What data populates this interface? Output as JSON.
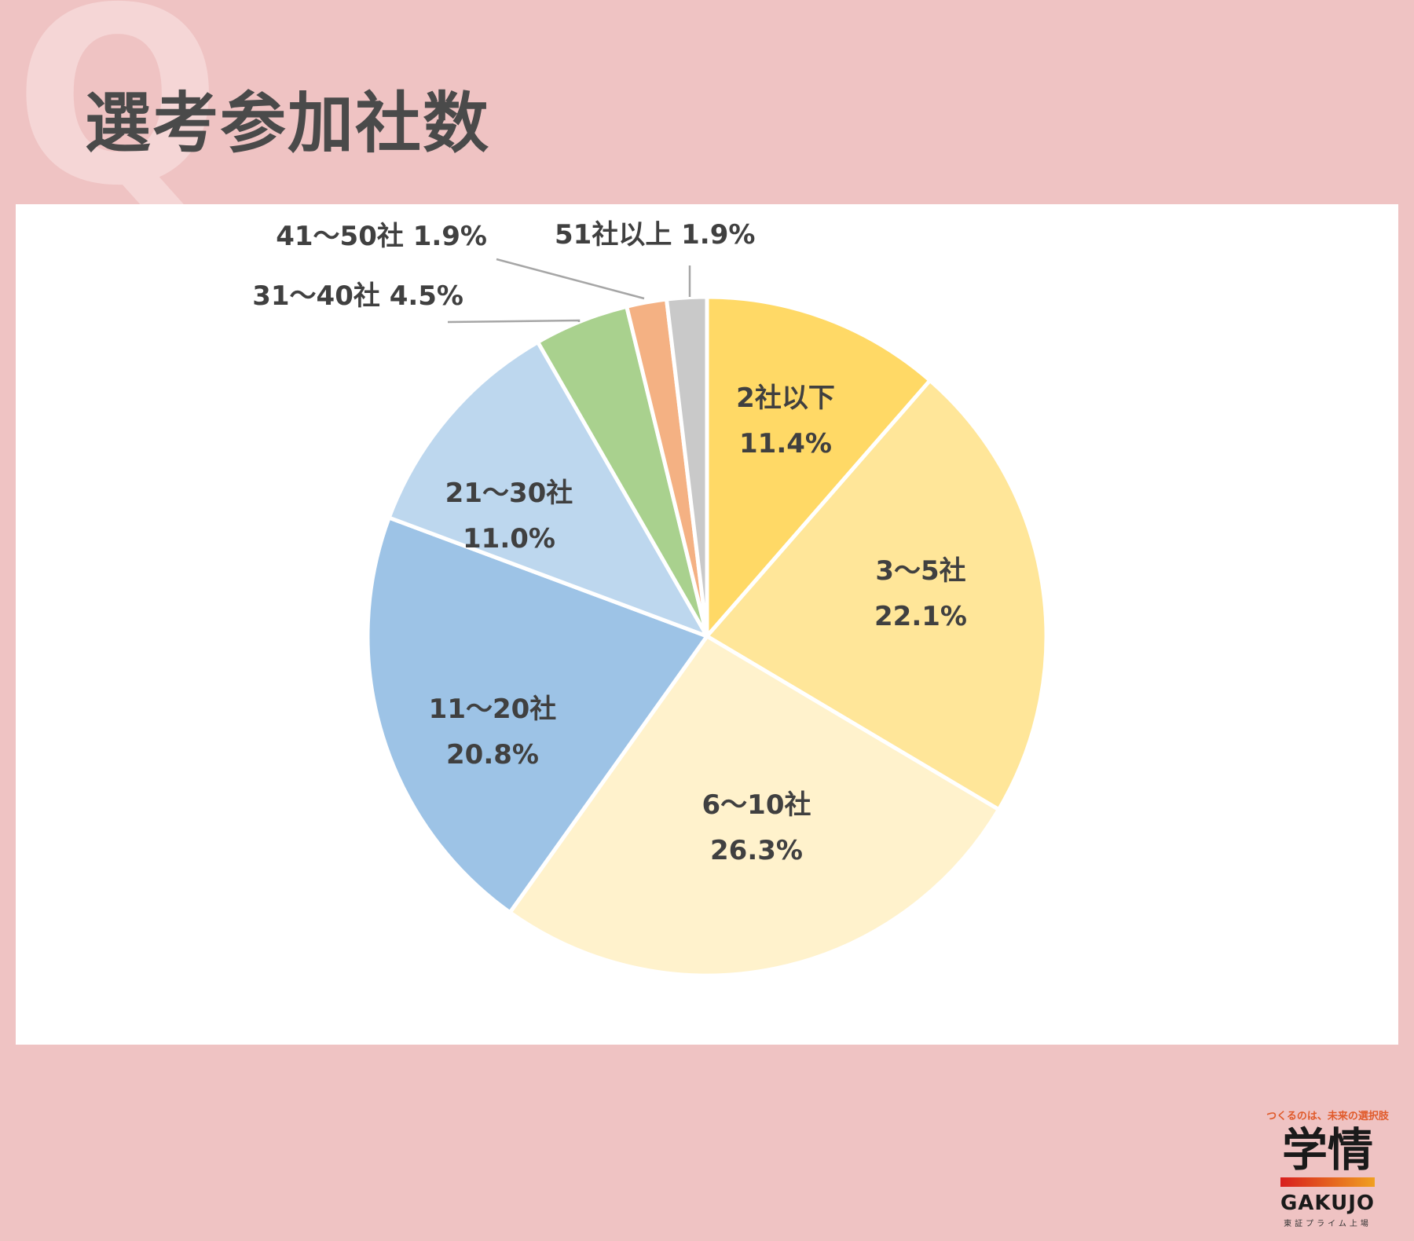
{
  "header": {
    "q_letter": "Q",
    "title": "選考参加社数"
  },
  "chart_data": {
    "type": "pie",
    "title": "選考参加社数",
    "start_angle_deg": 0,
    "direction": "clockwise",
    "slices": [
      {
        "label": "2社以下",
        "value": 11.4,
        "value_label": "11.4%",
        "color": "#ffd966",
        "label_inside": true
      },
      {
        "label": "3～5社",
        "value": 22.1,
        "value_label": "22.1%",
        "color": "#ffe699",
        "label_inside": true
      },
      {
        "label": "6～10社",
        "value": 26.3,
        "value_label": "26.3%",
        "color": "#fff2cc",
        "label_inside": true
      },
      {
        "label": "11～20社",
        "value": 20.8,
        "value_label": "20.8%",
        "color": "#9dc3e6",
        "label_inside": true
      },
      {
        "label": "21～30社",
        "value": 11.0,
        "value_label": "11.0%",
        "color": "#bdd7ee",
        "label_inside": true
      },
      {
        "label": "31～40社",
        "value": 4.5,
        "value_label": "4.5%",
        "color": "#a9d18e",
        "label_inside": false
      },
      {
        "label": "41～50社",
        "value": 1.9,
        "value_label": "1.9%",
        "color": "#f4b183",
        "label_inside": false
      },
      {
        "label": "51社以上",
        "value": 1.9,
        "value_label": "1.9%",
        "color": "#c9c9c9",
        "label_inside": false
      }
    ],
    "legend": "none",
    "label_color": "#404040",
    "leader_line_color": "#a6a6a6"
  },
  "logo": {
    "tagline": "つくるのは、未来の選択肢",
    "mark": "学情",
    "name": "GAKUJO",
    "sub": "東証プライム上場"
  },
  "colors": {
    "background": "#efc3c3",
    "q_letter": "#f5d6d6",
    "title": "#4a4a4a",
    "card": "#ffffff"
  }
}
